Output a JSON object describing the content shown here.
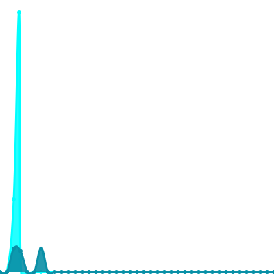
{
  "chart_data": {
    "type": "area",
    "title": "",
    "xlabel": "",
    "ylabel": "",
    "grid": false,
    "legend": "none",
    "xlim": [
      0,
      40
    ],
    "ylim": [
      0,
      100
    ],
    "x": [
      0,
      1,
      2,
      3,
      4,
      5,
      6,
      7,
      8,
      9,
      10,
      11,
      12,
      13,
      14,
      15,
      16,
      17,
      18,
      19,
      20,
      21,
      22,
      23,
      24,
      25,
      26,
      27,
      28,
      29,
      30,
      31,
      32,
      33,
      34,
      35,
      36,
      37,
      38,
      39,
      40
    ],
    "series": [
      {
        "color": "#00ffff",
        "opacity": 0.85,
        "values": [
          0,
          0,
          28,
          5,
          0,
          0,
          0,
          0,
          0,
          0,
          0,
          0,
          0,
          0,
          0,
          0,
          0,
          0,
          0,
          0,
          0,
          0,
          0,
          0,
          0,
          0,
          0,
          0,
          0,
          0,
          0,
          0,
          0,
          0,
          0,
          0,
          0,
          0,
          0,
          0,
          0
        ],
        "peak": {
          "x": 2.8,
          "value": 100
        }
      },
      {
        "color": "#0a8fa6",
        "opacity": 0.9,
        "values": [
          0,
          0,
          9,
          8,
          0,
          0,
          9,
          0,
          0,
          0,
          0,
          0,
          0,
          0,
          0,
          0,
          0,
          0,
          0,
          0,
          0,
          0,
          0,
          0,
          0,
          0,
          0,
          0,
          0,
          0,
          0,
          0,
          0,
          0,
          0,
          0,
          0,
          0,
          0,
          0,
          0
        ]
      }
    ]
  }
}
